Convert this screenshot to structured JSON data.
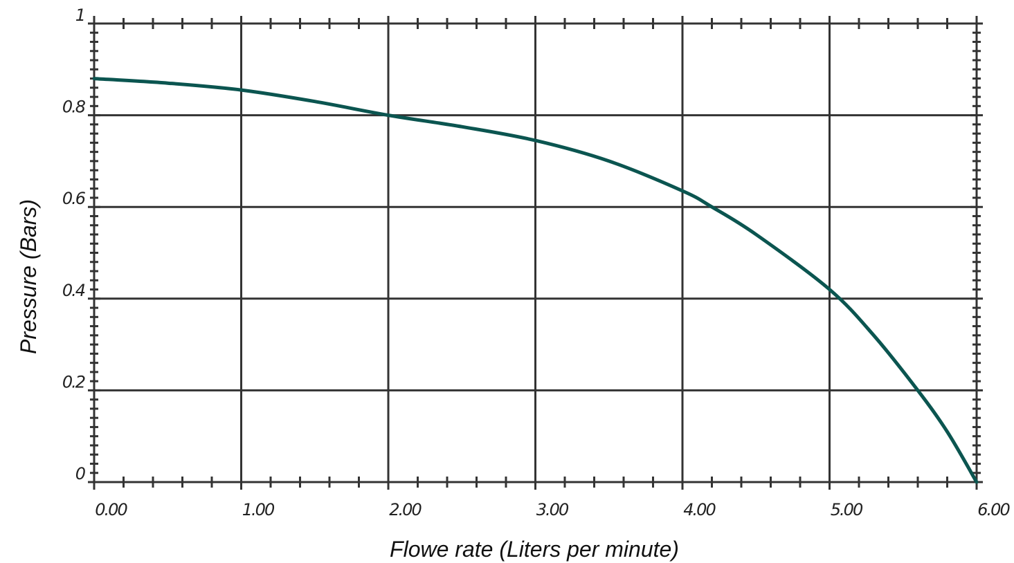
{
  "chart_data": {
    "type": "line",
    "title": "",
    "xlabel": "Flowe rate (Liters per minute)",
    "ylabel": "Pressure (Bars)",
    "xlim": [
      0,
      6
    ],
    "ylim": [
      0,
      1
    ],
    "x_ticks": [
      "0.00",
      "1.00",
      "2.00",
      "3.00",
      "4.00",
      "5.00",
      "6.00"
    ],
    "y_ticks": [
      "0",
      "0.2",
      "0.4",
      "0.6",
      "0.8",
      "1"
    ],
    "grid": true,
    "legend": "none",
    "series": [
      {
        "color": "#0b5550",
        "x": [
          0,
          0.5,
          1,
          1.5,
          2,
          2.5,
          3,
          3.5,
          4,
          4.2,
          4.5,
          5,
          5.3,
          5.6,
          5.8,
          6
        ],
        "y": [
          0.88,
          0.87,
          0.855,
          0.83,
          0.8,
          0.775,
          0.745,
          0.7,
          0.635,
          0.6,
          0.54,
          0.42,
          0.32,
          0.2,
          0.11,
          0
        ]
      }
    ]
  }
}
